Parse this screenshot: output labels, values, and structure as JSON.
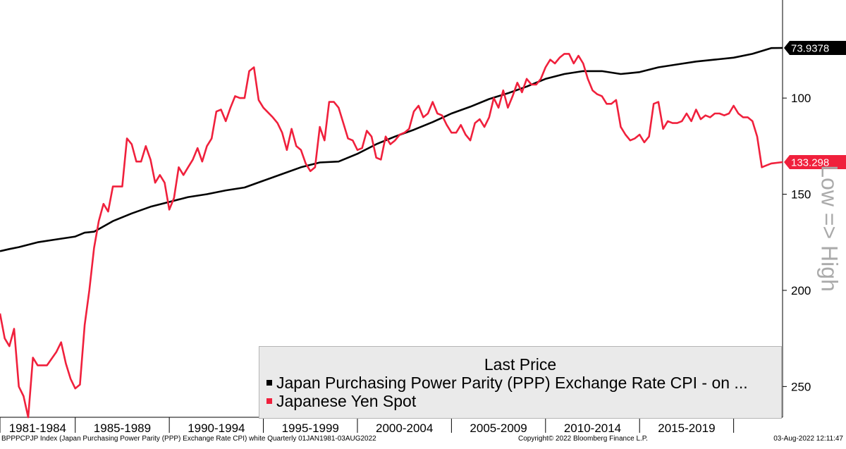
{
  "chart_data": {
    "type": "line",
    "ylim": [
      49,
      266
    ],
    "y_inverted": true,
    "y_ticks": [
      100,
      150,
      200,
      250
    ],
    "x_range": [
      1981.0,
      2022.6
    ],
    "x_ticks": [
      {
        "label": "1981-1984",
        "start": 1981
      },
      {
        "label": "1985-1989",
        "start": 1985
      },
      {
        "label": "1990-1994",
        "start": 1990
      },
      {
        "label": "1995-1999",
        "start": 1995
      },
      {
        "label": "2000-2004",
        "start": 2000
      },
      {
        "label": "2005-2009",
        "start": 2005
      },
      {
        "label": "2010-2014",
        "start": 2010
      },
      {
        "label": "2015-2019",
        "start": 2015
      },
      {
        "label": "",
        "start": 2020
      }
    ],
    "axis_title": "Low => High",
    "legend_title": "Last Price",
    "series": [
      {
        "name": "Japan Purchasing Power Parity (PPP) Exchange Rate CPI -  on ...",
        "color": "#000000",
        "last_value_label": "73.9378",
        "points": [
          [
            1981.0,
            179.6
          ],
          [
            1981.5,
            178.5
          ],
          [
            1982.0,
            177.5
          ],
          [
            1983.0,
            175.0
          ],
          [
            1984.0,
            173.5
          ],
          [
            1985.0,
            172.0
          ],
          [
            1985.5,
            170.0
          ],
          [
            1986.0,
            169.5
          ],
          [
            1987.0,
            164.0
          ],
          [
            1988.0,
            160.0
          ],
          [
            1989.0,
            156.5
          ],
          [
            1990.0,
            154.0
          ],
          [
            1991.0,
            151.5
          ],
          [
            1992.0,
            150.0
          ],
          [
            1993.0,
            148.0
          ],
          [
            1994.0,
            146.5
          ],
          [
            1995.0,
            143.0
          ],
          [
            1996.0,
            139.5
          ],
          [
            1997.0,
            136.0
          ],
          [
            1998.0,
            133.5
          ],
          [
            1999.0,
            133.0
          ],
          [
            2000.0,
            129.0
          ],
          [
            2001.0,
            124.0
          ],
          [
            2002.0,
            120.0
          ],
          [
            2003.0,
            116.5
          ],
          [
            2004.0,
            112.5
          ],
          [
            2005.0,
            108.0
          ],
          [
            2006.0,
            104.5
          ],
          [
            2007.0,
            100.5
          ],
          [
            2008.0,
            97.5
          ],
          [
            2009.0,
            94.0
          ],
          [
            2010.0,
            90.0
          ],
          [
            2011.0,
            87.5
          ],
          [
            2012.0,
            86.0
          ],
          [
            2013.0,
            86.0
          ],
          [
            2014.0,
            87.5
          ],
          [
            2015.0,
            86.5
          ],
          [
            2016.0,
            84.0
          ],
          [
            2017.0,
            82.5
          ],
          [
            2018.0,
            81.0
          ],
          [
            2019.0,
            80.0
          ],
          [
            2020.0,
            79.0
          ],
          [
            2021.0,
            77.0
          ],
          [
            2022.0,
            74.0
          ],
          [
            2022.6,
            73.9378
          ]
        ]
      },
      {
        "name": "Japanese Yen Spot",
        "color": "#f0203c",
        "last_value_label": "133.298",
        "points": [
          [
            1981.0,
            212
          ],
          [
            1981.25,
            225
          ],
          [
            1981.5,
            229
          ],
          [
            1981.75,
            220
          ],
          [
            1982.0,
            250
          ],
          [
            1982.25,
            255
          ],
          [
            1982.5,
            266
          ],
          [
            1982.75,
            235
          ],
          [
            1983.0,
            239
          ],
          [
            1983.5,
            239
          ],
          [
            1984.0,
            232
          ],
          [
            1984.25,
            227
          ],
          [
            1984.5,
            238
          ],
          [
            1984.75,
            246
          ],
          [
            1985.0,
            251
          ],
          [
            1985.25,
            249
          ],
          [
            1985.5,
            218
          ],
          [
            1985.75,
            200
          ],
          [
            1986.0,
            178
          ],
          [
            1986.25,
            164
          ],
          [
            1986.5,
            155
          ],
          [
            1986.75,
            159
          ],
          [
            1987.0,
            146
          ],
          [
            1987.25,
            146
          ],
          [
            1987.5,
            146
          ],
          [
            1987.75,
            121
          ],
          [
            1988.0,
            124
          ],
          [
            1988.25,
            133
          ],
          [
            1988.5,
            133
          ],
          [
            1988.75,
            125
          ],
          [
            1989.0,
            132
          ],
          [
            1989.25,
            144
          ],
          [
            1989.5,
            140
          ],
          [
            1989.75,
            144
          ],
          [
            1990.0,
            158
          ],
          [
            1990.25,
            152
          ],
          [
            1990.5,
            136
          ],
          [
            1990.75,
            140
          ],
          [
            1991.0,
            136
          ],
          [
            1991.25,
            132
          ],
          [
            1991.5,
            126
          ],
          [
            1991.75,
            133
          ],
          [
            1992.0,
            125
          ],
          [
            1992.25,
            121
          ],
          [
            1992.5,
            107
          ],
          [
            1992.75,
            106
          ],
          [
            1993.0,
            112
          ],
          [
            1993.25,
            105
          ],
          [
            1993.5,
            99
          ],
          [
            1993.75,
            100
          ],
          [
            1994.0,
            100
          ],
          [
            1994.25,
            86
          ],
          [
            1994.5,
            84
          ],
          [
            1994.75,
            101
          ],
          [
            1995.0,
            105
          ],
          [
            1995.5,
            110
          ],
          [
            1995.75,
            113
          ],
          [
            1996.0,
            118
          ],
          [
            1996.25,
            127
          ],
          [
            1996.5,
            116
          ],
          [
            1996.75,
            125
          ],
          [
            1997.0,
            127
          ],
          [
            1997.25,
            134
          ],
          [
            1997.5,
            138
          ],
          [
            1997.75,
            136
          ],
          [
            1998.0,
            115
          ],
          [
            1998.25,
            122
          ],
          [
            1998.5,
            102
          ],
          [
            1998.75,
            102
          ],
          [
            1999.0,
            105
          ],
          [
            1999.25,
            113
          ],
          [
            1999.5,
            121
          ],
          [
            1999.75,
            122
          ],
          [
            2000.0,
            127
          ],
          [
            2000.25,
            126
          ],
          [
            2000.5,
            117
          ],
          [
            2000.75,
            120
          ],
          [
            2001.0,
            131
          ],
          [
            2001.25,
            132
          ],
          [
            2001.5,
            120
          ],
          [
            2001.75,
            124
          ],
          [
            2002.0,
            122
          ],
          [
            2002.25,
            119
          ],
          [
            2002.5,
            118
          ],
          [
            2002.75,
            116
          ],
          [
            2003.0,
            107
          ],
          [
            2003.25,
            104
          ],
          [
            2003.5,
            110
          ],
          [
            2003.75,
            108
          ],
          [
            2004.0,
            102
          ],
          [
            2004.25,
            108
          ],
          [
            2004.5,
            109
          ],
          [
            2004.75,
            114
          ],
          [
            2005.0,
            118
          ],
          [
            2005.25,
            118
          ],
          [
            2005.5,
            114
          ],
          [
            2005.75,
            119
          ],
          [
            2006.0,
            122
          ],
          [
            2006.25,
            113
          ],
          [
            2006.5,
            111
          ],
          [
            2006.75,
            115
          ],
          [
            2007.0,
            110
          ],
          [
            2007.25,
            100
          ],
          [
            2007.5,
            105
          ],
          [
            2007.75,
            96
          ],
          [
            2008.0,
            105
          ],
          [
            2008.25,
            99
          ],
          [
            2008.5,
            92
          ],
          [
            2008.75,
            97
          ],
          [
            2009.0,
            90
          ],
          [
            2009.25,
            93
          ],
          [
            2009.5,
            93
          ],
          [
            2009.75,
            90
          ],
          [
            2010.0,
            84
          ],
          [
            2010.25,
            80
          ],
          [
            2010.5,
            82
          ],
          [
            2010.75,
            79
          ],
          [
            2011.0,
            77
          ],
          [
            2011.25,
            77
          ],
          [
            2011.5,
            82
          ],
          [
            2011.75,
            78
          ],
          [
            2012.0,
            82
          ],
          [
            2012.25,
            90
          ],
          [
            2012.5,
            96
          ],
          [
            2012.75,
            98
          ],
          [
            2013.0,
            99
          ],
          [
            2013.25,
            103
          ],
          [
            2013.5,
            103
          ],
          [
            2013.75,
            101
          ],
          [
            2014.0,
            115
          ],
          [
            2014.25,
            119
          ],
          [
            2014.5,
            122
          ],
          [
            2014.75,
            121
          ],
          [
            2015.0,
            119
          ],
          [
            2015.25,
            123
          ],
          [
            2015.5,
            120
          ],
          [
            2015.75,
            103
          ],
          [
            2016.0,
            102
          ],
          [
            2016.25,
            116
          ],
          [
            2016.5,
            112
          ],
          [
            2016.75,
            113
          ],
          [
            2017.0,
            113
          ],
          [
            2017.25,
            112
          ],
          [
            2017.5,
            108
          ],
          [
            2017.75,
            112
          ],
          [
            2018.0,
            106
          ],
          [
            2018.25,
            111
          ],
          [
            2018.5,
            109
          ],
          [
            2018.75,
            110
          ],
          [
            2019.0,
            108
          ],
          [
            2019.25,
            108
          ],
          [
            2019.5,
            109
          ],
          [
            2019.75,
            108
          ],
          [
            2020.0,
            104
          ],
          [
            2020.25,
            108
          ],
          [
            2020.5,
            110
          ],
          [
            2020.75,
            110
          ],
          [
            2021.0,
            112
          ],
          [
            2021.25,
            120
          ],
          [
            2021.5,
            136
          ],
          [
            2021.75,
            135
          ],
          [
            2022.0,
            134
          ],
          [
            2022.6,
            133.298
          ]
        ]
      }
    ]
  },
  "footer": {
    "left": "BPPPCPJP Index (Japan Purchasing Power Parity (PPP) Exchange Rate CPI) white  Quarterly 01JAN1981-03AUG2022",
    "center": "Copyright© 2022 Bloomberg Finance L.P.",
    "right": "03-Aug-2022 12:11:47"
  }
}
